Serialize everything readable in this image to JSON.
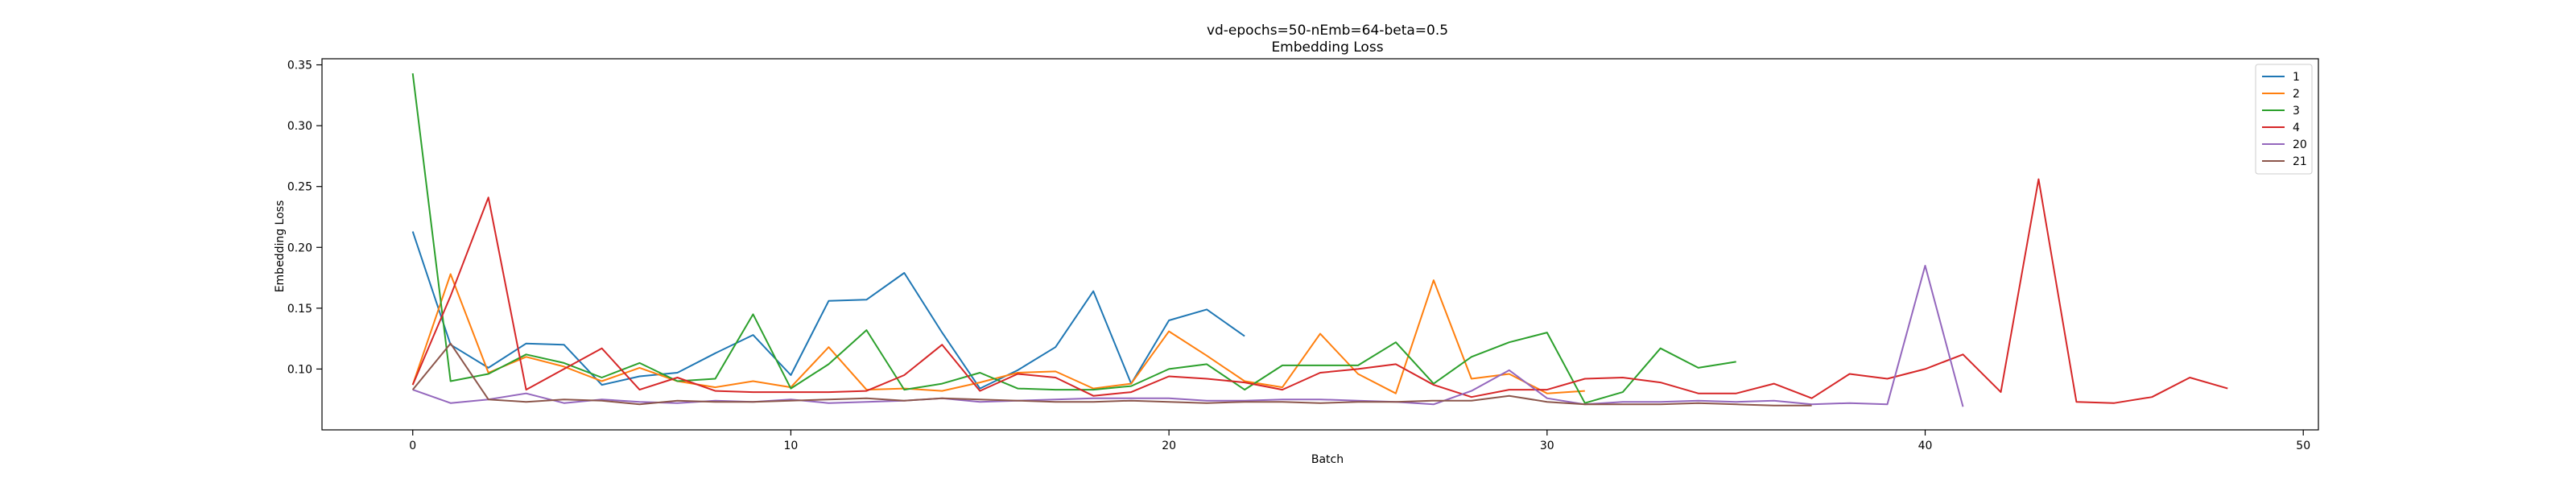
{
  "chart_data": {
    "type": "line",
    "title": "vd-epochs=50-nEmb=64-beta=0.5",
    "subtitle": "Embedding Loss",
    "xlabel": "Batch",
    "ylabel": "Embedding Loss",
    "xlim": [
      -2.4,
      50.4
    ],
    "ylim": [
      0.05,
      0.355
    ],
    "xticks": [
      0,
      10,
      20,
      30,
      40,
      50
    ],
    "yticks": [
      0.1,
      0.15,
      0.2,
      0.25,
      0.3,
      0.35
    ],
    "ytick_labels": [
      "0.10",
      "0.15",
      "0.20",
      "0.25",
      "0.30",
      "0.35"
    ],
    "grid": false,
    "legend_position": "top-right",
    "series": [
      {
        "name": "1",
        "color": "#1f77b4",
        "x": [
          0,
          1,
          2,
          3,
          4,
          5,
          6,
          7,
          8,
          9,
          10,
          11,
          12,
          13,
          14,
          15,
          16,
          17,
          18,
          19,
          20,
          21,
          22
        ],
        "values": [
          0.213,
          0.12,
          0.101,
          0.121,
          0.12,
          0.087,
          0.094,
          0.097,
          0.113,
          0.128,
          0.095,
          0.156,
          0.157,
          0.179,
          0.13,
          0.084,
          0.099,
          0.118,
          0.164,
          0.088,
          0.14,
          0.149,
          0.127
        ]
      },
      {
        "name": "2",
        "color": "#ff7f0e",
        "x": [
          0,
          1,
          2,
          3,
          4,
          5,
          6,
          7,
          8,
          9,
          10,
          11,
          12,
          13,
          14,
          15,
          16,
          17,
          18,
          19,
          20,
          21,
          22,
          23,
          24,
          25,
          26,
          27,
          28,
          29,
          30,
          31
        ],
        "values": [
          0.087,
          0.178,
          0.097,
          0.11,
          0.102,
          0.09,
          0.101,
          0.09,
          0.085,
          0.09,
          0.085,
          0.118,
          0.083,
          0.084,
          0.082,
          0.089,
          0.097,
          0.098,
          0.084,
          0.088,
          0.131,
          0.111,
          0.09,
          0.085,
          0.129,
          0.096,
          0.08,
          0.173,
          0.092,
          0.096,
          0.08,
          0.082
        ]
      },
      {
        "name": "3",
        "color": "#2ca02c",
        "x": [
          0,
          1,
          2,
          3,
          4,
          5,
          6,
          7,
          8,
          9,
          10,
          11,
          12,
          13,
          14,
          15,
          16,
          17,
          18,
          19,
          20,
          21,
          22,
          23,
          24,
          25,
          26,
          27,
          28,
          29,
          30,
          31,
          32,
          33,
          34,
          35
        ],
        "values": [
          0.343,
          0.09,
          0.096,
          0.112,
          0.105,
          0.093,
          0.105,
          0.09,
          0.092,
          0.145,
          0.084,
          0.104,
          0.132,
          0.083,
          0.088,
          0.097,
          0.084,
          0.083,
          0.083,
          0.086,
          0.1,
          0.104,
          0.083,
          0.103,
          0.103,
          0.103,
          0.122,
          0.088,
          0.11,
          0.122,
          0.13,
          0.072,
          0.081,
          0.117,
          0.101,
          0.106
        ]
      },
      {
        "name": "4",
        "color": "#d62728",
        "x": [
          0,
          1,
          2,
          3,
          4,
          5,
          6,
          7,
          8,
          9,
          10,
          11,
          12,
          13,
          14,
          15,
          16,
          17,
          18,
          19,
          20,
          21,
          22,
          23,
          24,
          25,
          26,
          27,
          28,
          29,
          30,
          31,
          32,
          33,
          34,
          35,
          36,
          37,
          38,
          39,
          40,
          41,
          42,
          43,
          44,
          45,
          46,
          47,
          48
        ],
        "values": [
          0.087,
          0.16,
          0.241,
          0.083,
          0.1,
          0.117,
          0.083,
          0.093,
          0.082,
          0.081,
          0.081,
          0.081,
          0.082,
          0.095,
          0.12,
          0.082,
          0.096,
          0.093,
          0.078,
          0.081,
          0.094,
          0.092,
          0.089,
          0.083,
          0.097,
          0.1,
          0.104,
          0.087,
          0.077,
          0.083,
          0.083,
          0.092,
          0.093,
          0.089,
          0.08,
          0.08,
          0.088,
          0.076,
          0.096,
          0.092,
          0.1,
          0.112,
          0.081,
          0.256,
          0.073,
          0.072,
          0.077,
          0.093,
          0.084
        ]
      },
      {
        "name": "20",
        "color": "#9467bd",
        "x": [
          0,
          1,
          2,
          3,
          4,
          5,
          6,
          7,
          8,
          9,
          10,
          11,
          12,
          13,
          14,
          15,
          16,
          17,
          18,
          19,
          20,
          21,
          22,
          23,
          24,
          25,
          26,
          27,
          28,
          29,
          30,
          31,
          32,
          33,
          34,
          35,
          36,
          37,
          38,
          39,
          40,
          41
        ],
        "values": [
          0.083,
          0.072,
          0.075,
          0.08,
          0.072,
          0.075,
          0.073,
          0.072,
          0.074,
          0.073,
          0.075,
          0.072,
          0.073,
          0.074,
          0.076,
          0.073,
          0.074,
          0.075,
          0.076,
          0.076,
          0.076,
          0.074,
          0.074,
          0.075,
          0.075,
          0.074,
          0.073,
          0.071,
          0.082,
          0.099,
          0.076,
          0.071,
          0.073,
          0.073,
          0.074,
          0.073,
          0.074,
          0.071,
          0.072,
          0.071,
          0.185,
          0.069
        ]
      },
      {
        "name": "21",
        "color": "#8c564b",
        "x": [
          0,
          1,
          2,
          3,
          4,
          5,
          6,
          7,
          8,
          9,
          10,
          11,
          12,
          13,
          14,
          15,
          16,
          17,
          18,
          19,
          20,
          21,
          22,
          23,
          24,
          25,
          26,
          27,
          28,
          29,
          30,
          31,
          32,
          33,
          34,
          35,
          36,
          37
        ],
        "values": [
          0.083,
          0.121,
          0.075,
          0.073,
          0.075,
          0.074,
          0.071,
          0.074,
          0.073,
          0.073,
          0.074,
          0.075,
          0.076,
          0.074,
          0.076,
          0.075,
          0.074,
          0.073,
          0.073,
          0.074,
          0.073,
          0.072,
          0.073,
          0.073,
          0.072,
          0.073,
          0.073,
          0.074,
          0.074,
          0.078,
          0.073,
          0.071,
          0.071,
          0.071,
          0.072,
          0.071,
          0.07,
          0.07
        ]
      }
    ]
  }
}
